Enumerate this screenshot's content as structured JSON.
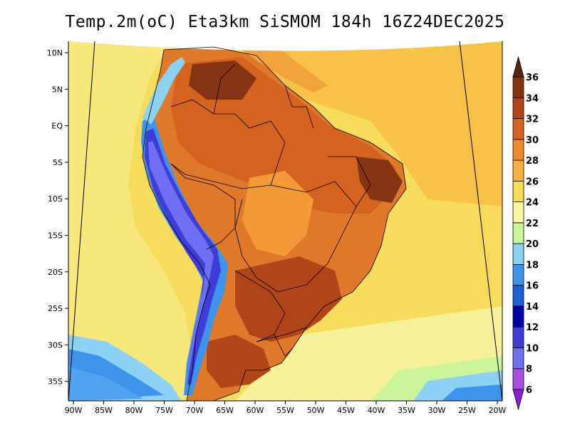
{
  "title": "Temp.2m(oC) Eta3km SiSMOM 184h 16Z24DEC2025",
  "map": {
    "lat_labels": [
      "10N",
      "5N",
      "EQ",
      "5S",
      "10S",
      "15S",
      "20S",
      "25S",
      "30S",
      "35S"
    ],
    "lon_labels": [
      "90W",
      "85W",
      "80W",
      "75W",
      "70W",
      "65W",
      "60W",
      "55W",
      "50W",
      "45W",
      "40W",
      "35W",
      "30W",
      "25W",
      "20W"
    ]
  },
  "colorbar": {
    "levels": [
      "6",
      "8",
      "10",
      "12",
      "14",
      "16",
      "18",
      "20",
      "22",
      "24",
      "26",
      "28",
      "30",
      "32",
      "34",
      "36"
    ],
    "colors": [
      "#8c1fd2",
      "#a94fe0",
      "#6f6ff5",
      "#3d3dd9",
      "#0000aa",
      "#1f5ed6",
      "#3e93ec",
      "#8dd2f5",
      "#cbf59a",
      "#f9f7a1",
      "#f6e04d",
      "#f8b13b",
      "#f08b2e",
      "#d5621f",
      "#b0461a",
      "#843315",
      "#5b220c"
    ]
  }
}
